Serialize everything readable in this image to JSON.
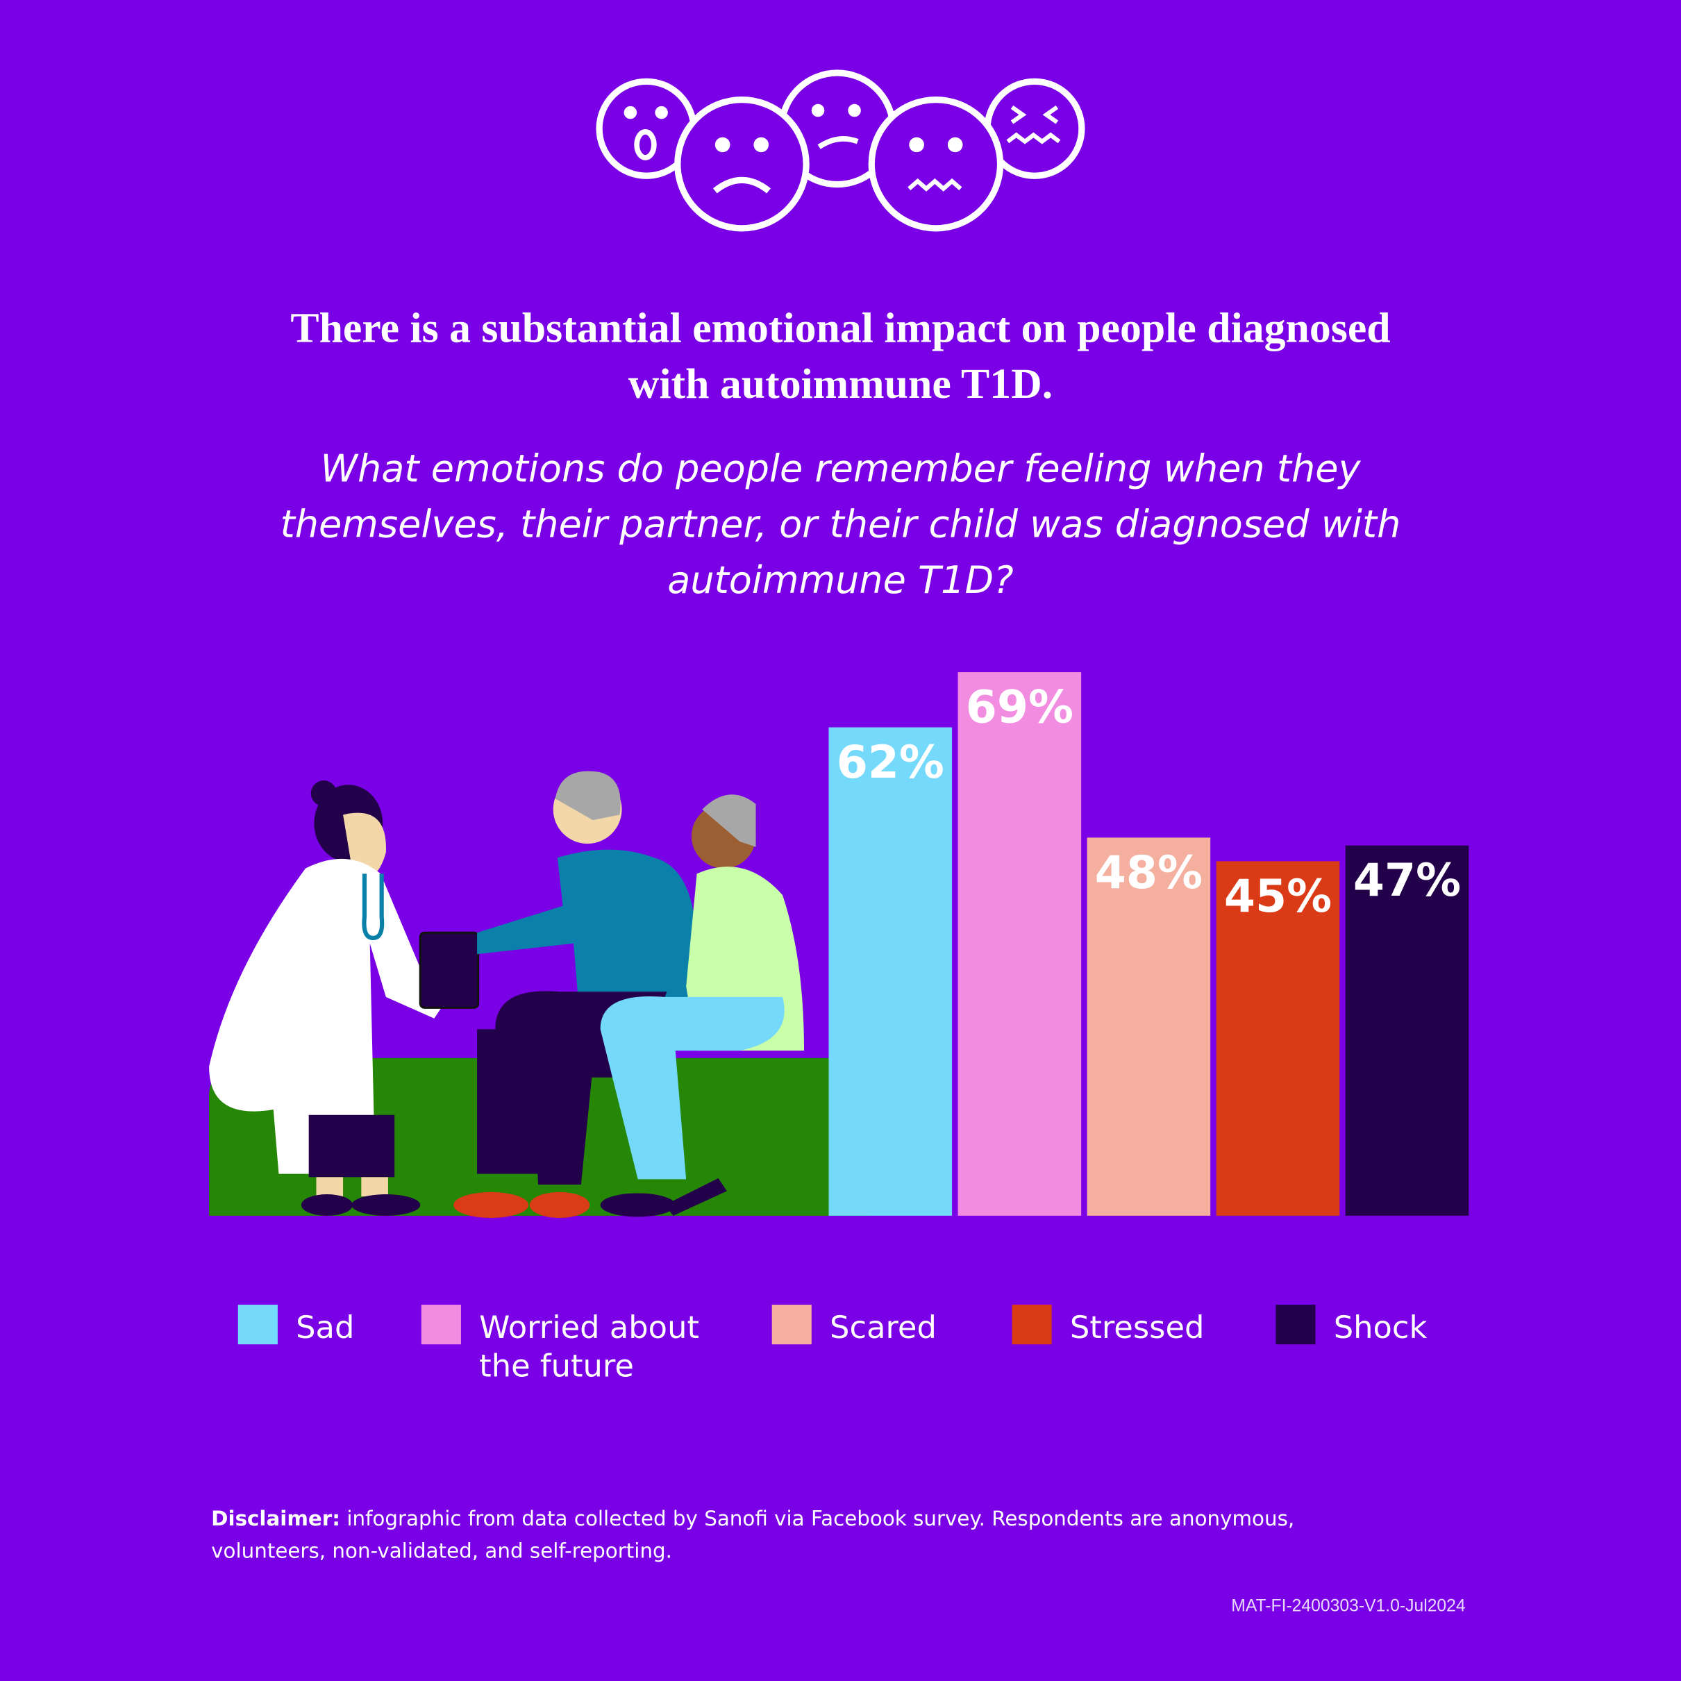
{
  "chart_data": {
    "type": "bar",
    "title": "There is a substantial emotional impact on people diagnosed with autoimmune T1D.",
    "subtitle": "What emotions do people remember feeling when they themselves, their partner, or their child was diagnosed with autoimmune T1D?",
    "categories": [
      "Sad",
      "Worried about the future",
      "Scared",
      "Stressed",
      "Shock"
    ],
    "values": [
      62,
      69,
      48,
      45,
      47
    ],
    "value_labels": [
      "62%",
      "69%",
      "48%",
      "45%",
      "47%"
    ],
    "colors": [
      "#75d9fb",
      "#f28ce0",
      "#f4af9f",
      "#db3a16",
      "#22004a"
    ]
  },
  "disclaimer": {
    "label": "Disclaimer:",
    "text": "infographic from data collected by Sanofi via Facebook survey. Respondents are anonymous, volunteers, non-validated, and self-reporting."
  },
  "reference_code": "MAT-FI-2400303-V1.0-Jul2024"
}
